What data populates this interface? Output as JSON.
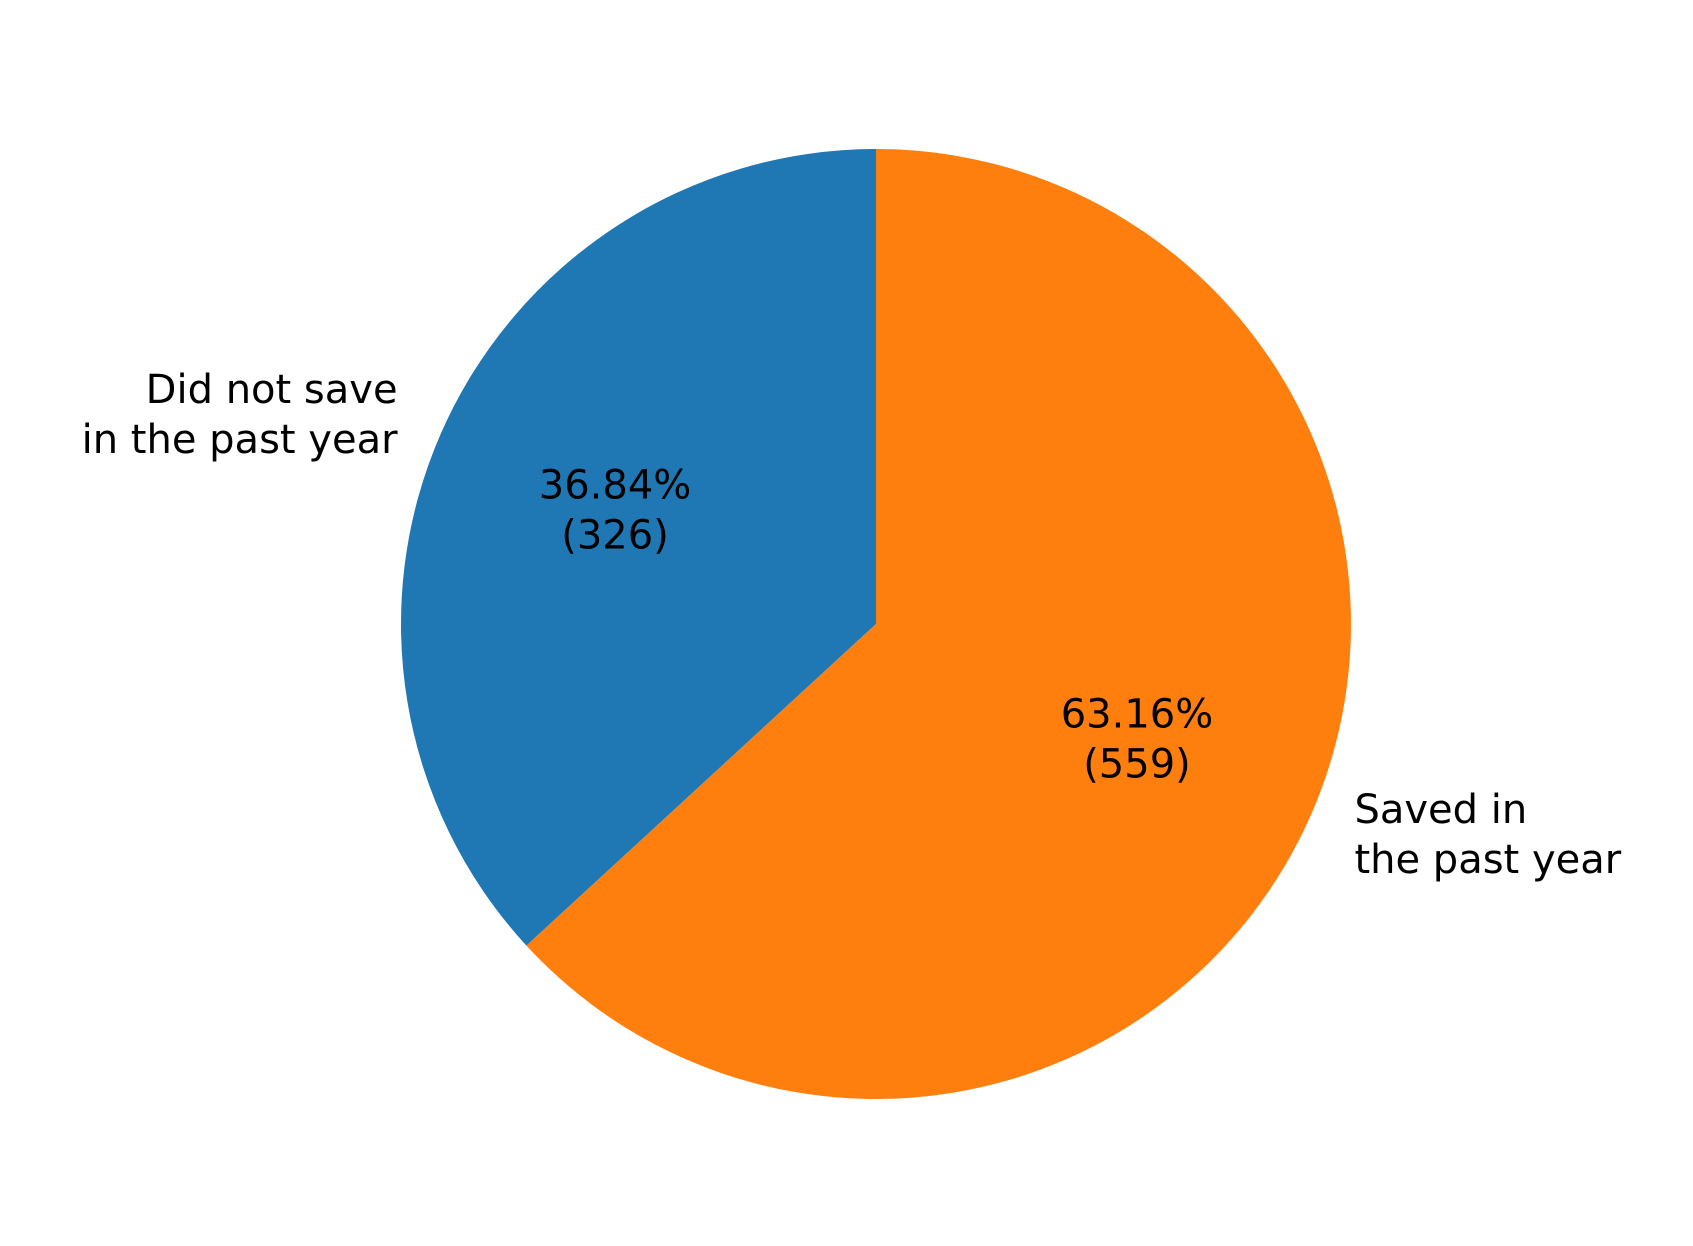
{
  "chart_data": {
    "type": "pie",
    "title": "",
    "slices": [
      {
        "label_lines": [
          "Did not save",
          "in the past year"
        ],
        "value": 326,
        "percent": 36.84,
        "autopct_lines": [
          "36.84%",
          "(326)"
        ],
        "color": "#1f77b4"
      },
      {
        "label_lines": [
          "Saved in",
          "the past year"
        ],
        "value": 559,
        "percent": 63.16,
        "autopct_lines": [
          "63.16%",
          "(559)"
        ],
        "color": "#ff7f0e"
      }
    ],
    "start_angle": "top",
    "direction": "clockwise from top (blue slice counter-clockwise on the left)",
    "legend": "none"
  }
}
